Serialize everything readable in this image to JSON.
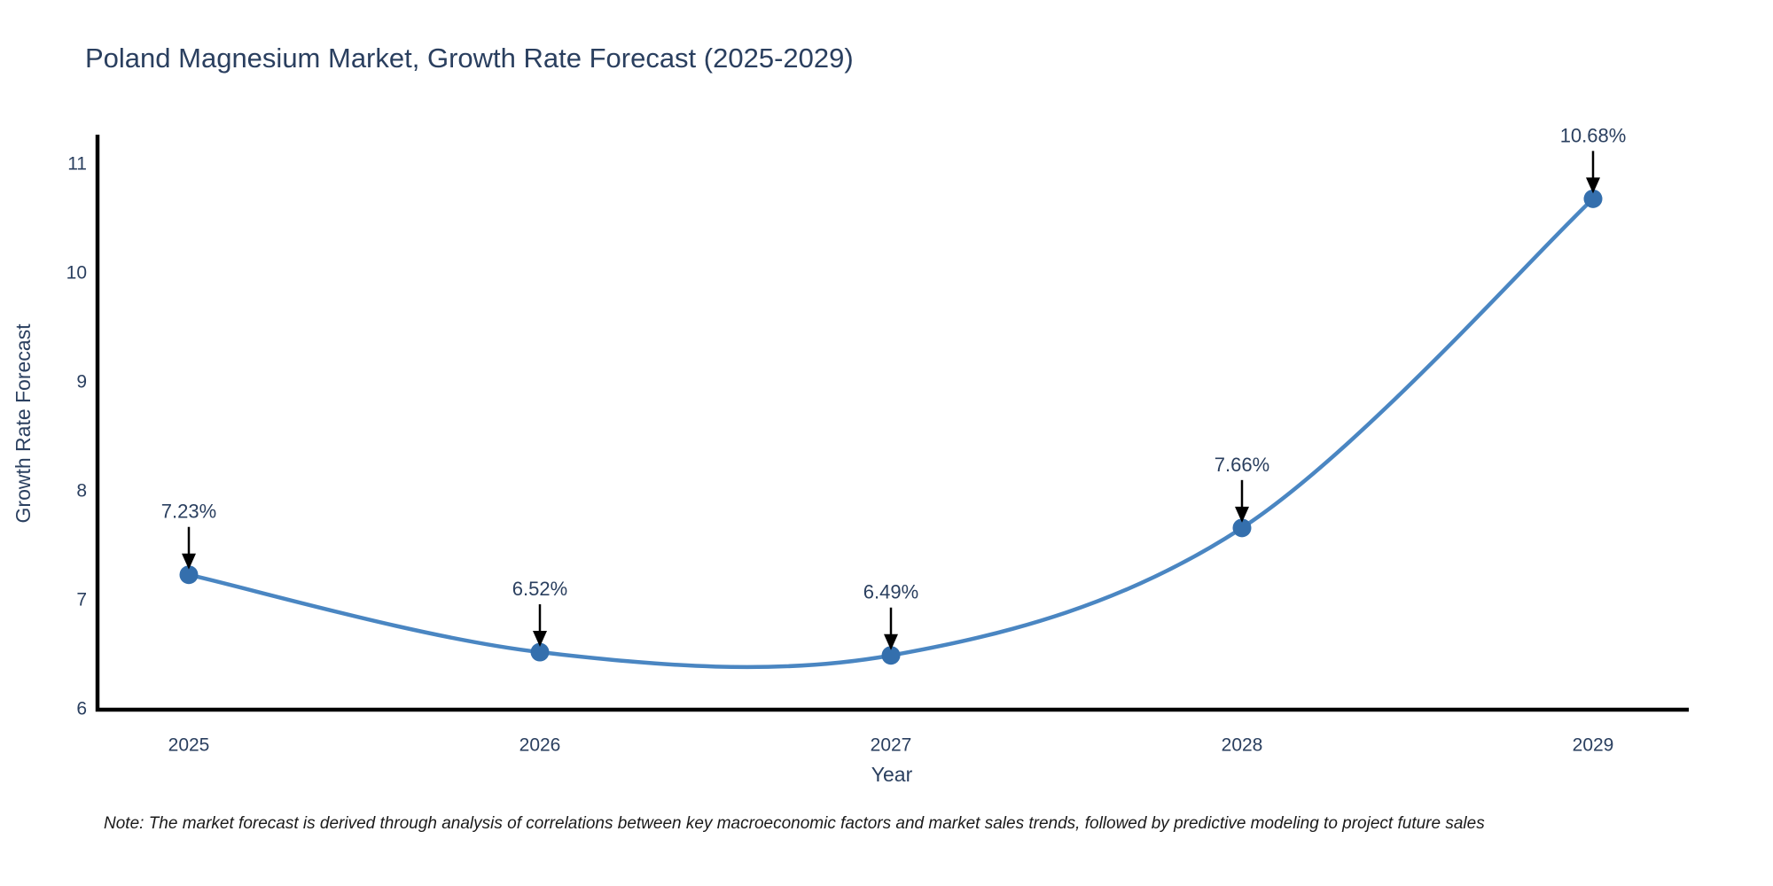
{
  "chart_data": {
    "type": "line",
    "title": "Poland Magnesium Market, Growth Rate Forecast (2025-2029)",
    "xlabel": "Year",
    "ylabel": "Growth Rate Forecast",
    "categories": [
      "2025",
      "2026",
      "2027",
      "2028",
      "2029"
    ],
    "series": [
      {
        "name": "Growth Rate Forecast",
        "values": [
          7.23,
          6.52,
          6.49,
          7.66,
          10.68
        ],
        "point_labels": [
          "7.23%",
          "6.52%",
          "6.49%",
          "7.66%",
          "10.68%"
        ]
      }
    ],
    "y_ticks": [
      6,
      7,
      8,
      9,
      10,
      11
    ],
    "ylim": [
      6,
      11
    ],
    "grid": false,
    "legend_position": "none",
    "line_shape": "spline",
    "annotations_have_arrows": true,
    "colors": {
      "line": "#4a86c2",
      "marker": "#346fad",
      "axis": "#000000",
      "text": "#2a3f5f",
      "arrow": "#000000"
    }
  },
  "note": "Note: The market forecast is derived through analysis of correlations between key macroeconomic factors and market sales trends, followed by predictive modeling to project future sales"
}
